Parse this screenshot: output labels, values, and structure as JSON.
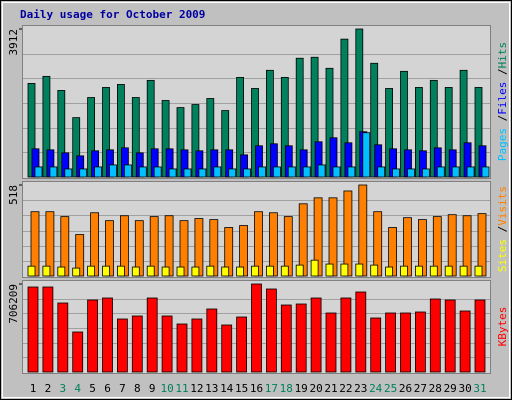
{
  "title": "Daily usage for October 2009",
  "legend_separator": "/",
  "chart_data": [
    {
      "type": "bar",
      "ylim": [
        0,
        3912
      ],
      "yticks": [
        3912
      ],
      "series": [
        {
          "name": "Pages",
          "color": "#00c0ff",
          "values": [
            266,
            266,
            213,
            213,
            266,
            319,
            319,
            266,
            266,
            213,
            213,
            213,
            266,
            213,
            213,
            266,
            266,
            266,
            266,
            319,
            266,
            266,
            1170,
            266,
            213,
            213,
            213,
            266,
            266,
            266,
            266
          ]
        },
        {
          "name": "Files",
          "color": "#0000ff",
          "values": [
            745,
            718,
            638,
            559,
            692,
            718,
            771,
            638,
            745,
            745,
            718,
            692,
            718,
            718,
            585,
            825,
            878,
            825,
            718,
            931,
            1037,
            904,
            1197,
            851,
            745,
            718,
            692,
            771,
            718,
            904,
            825
          ]
        },
        {
          "name": "Hits",
          "color": "#00805c",
          "values": [
            2474,
            2660,
            2288,
            1569,
            2101,
            2367,
            2447,
            2101,
            2554,
            2022,
            1835,
            1915,
            2075,
            1756,
            2633,
            2341,
            2820,
            2633,
            3139,
            3165,
            2873,
            3644,
            3912,
            3006,
            2341,
            2793,
            2367,
            2554,
            2367,
            2820,
            2367
          ]
        }
      ]
    },
    {
      "type": "bar",
      "ylim": [
        0,
        518
      ],
      "yticks": [
        518
      ],
      "series": [
        {
          "name": "Sites",
          "color": "#ffff00",
          "values": [
            56,
            56,
            51,
            45,
            56,
            56,
            56,
            51,
            56,
            51,
            51,
            51,
            56,
            51,
            51,
            56,
            56,
            56,
            62,
            90,
            68,
            68,
            68,
            62,
            51,
            56,
            56,
            56,
            56,
            56,
            56
          ]
        },
        {
          "name": "Visits",
          "color": "#ff8000",
          "values": [
            366,
            366,
            338,
            236,
            360,
            315,
            343,
            315,
            338,
            343,
            315,
            327,
            321,
            276,
            287,
            366,
            360,
            338,
            411,
            445,
            445,
            484,
            518,
            366,
            276,
            332,
            321,
            338,
            349,
            343,
            355
          ]
        }
      ]
    },
    {
      "type": "bar",
      "ylim": [
        0,
        706209
      ],
      "yticks": [
        706209
      ],
      "categories": [
        "1",
        "2",
        "3",
        "4",
        "5",
        "6",
        "7",
        "8",
        "9",
        "10",
        "11",
        "12",
        "13",
        "14",
        "15",
        "16",
        "17",
        "18",
        "19",
        "20",
        "21",
        "22",
        "23",
        "24",
        "25",
        "26",
        "27",
        "28",
        "29",
        "30",
        "31"
      ],
      "category_colors": [
        "#000000",
        "#000000",
        "#00805c",
        "#00805c",
        "#000000",
        "#000000",
        "#000000",
        "#000000",
        "#000000",
        "#00805c",
        "#00805c",
        "#000000",
        "#000000",
        "#000000",
        "#000000",
        "#000000",
        "#00805c",
        "#00805c",
        "#000000",
        "#000000",
        "#000000",
        "#000000",
        "#000000",
        "#00805c",
        "#00805c",
        "#000000",
        "#000000",
        "#000000",
        "#000000",
        "#000000",
        "#00805c"
      ],
      "series": [
        {
          "name": "KBytes",
          "color": "#ff0000",
          "values": [
            682125,
            682125,
            553725,
            321000,
            577800,
            593850,
            425325,
            449400,
            593850,
            449400,
            385200,
            425325,
            505575,
            377175,
            441375,
            706209,
            666075,
            537675,
            545700,
            593850,
            473475,
            593850,
            642000,
            433350,
            473475,
            473475,
            481500,
            585825,
            577800,
            489525,
            577800
          ]
        }
      ]
    }
  ]
}
